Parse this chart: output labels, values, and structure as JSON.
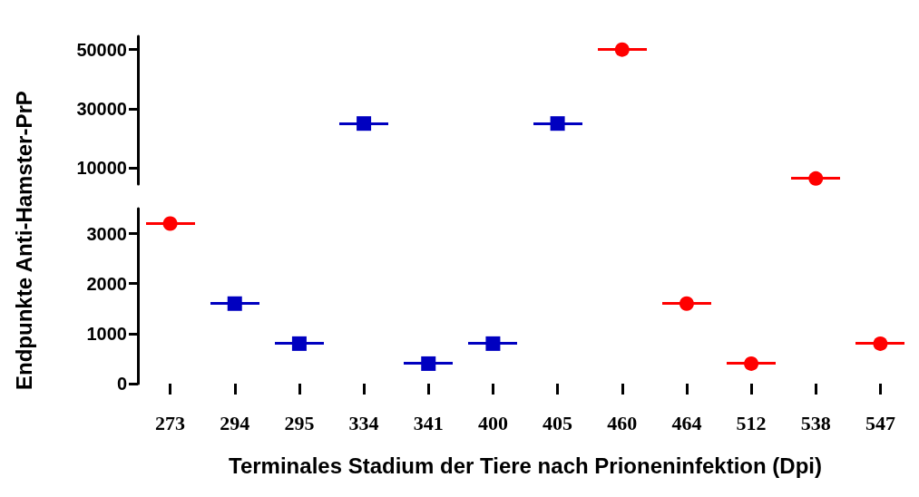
{
  "chart_data": [
    {
      "type": "scatter",
      "categories": [
        "273",
        "294",
        "295",
        "334",
        "341",
        "400",
        "405",
        "460",
        "464",
        "512",
        "538",
        "547"
      ],
      "tick_labels": "y",
      "ylim": [
        4500,
        54500
      ],
      "yticks": [
        10000,
        30000,
        50000
      ],
      "series": [
        {
          "color": "#ff0000",
          "marker": "circle",
          "values": [
            null,
            null,
            null,
            null,
            null,
            null,
            null,
            50000,
            null,
            null,
            6400,
            null
          ]
        },
        {
          "color": "#0000c0",
          "marker": "square",
          "values": [
            null,
            null,
            null,
            25000,
            null,
            null,
            25000,
            null,
            null,
            null,
            null,
            null
          ]
        }
      ]
    },
    {
      "type": "scatter",
      "categories": [
        "273",
        "294",
        "295",
        "334",
        "341",
        "400",
        "405",
        "460",
        "464",
        "512",
        "538",
        "547"
      ],
      "xlabel": "Terminales Stadium der Tiere nach Prioneninfektion (Dpi)",
      "ylabel": "Endpunkte Anti-Hamster-PrP",
      "ylim": [
        0,
        3500
      ],
      "yticks": [
        0,
        1000,
        2000,
        3000
      ],
      "series": [
        {
          "color": "#ff0000",
          "marker": "circle",
          "values": [
            3200,
            null,
            null,
            null,
            null,
            null,
            null,
            null,
            1600,
            400,
            null,
            800
          ]
        },
        {
          "color": "#0000c0",
          "marker": "square",
          "values": [
            null,
            1600,
            800,
            null,
            400,
            800,
            null,
            null,
            null,
            null,
            null,
            null
          ]
        }
      ]
    }
  ]
}
